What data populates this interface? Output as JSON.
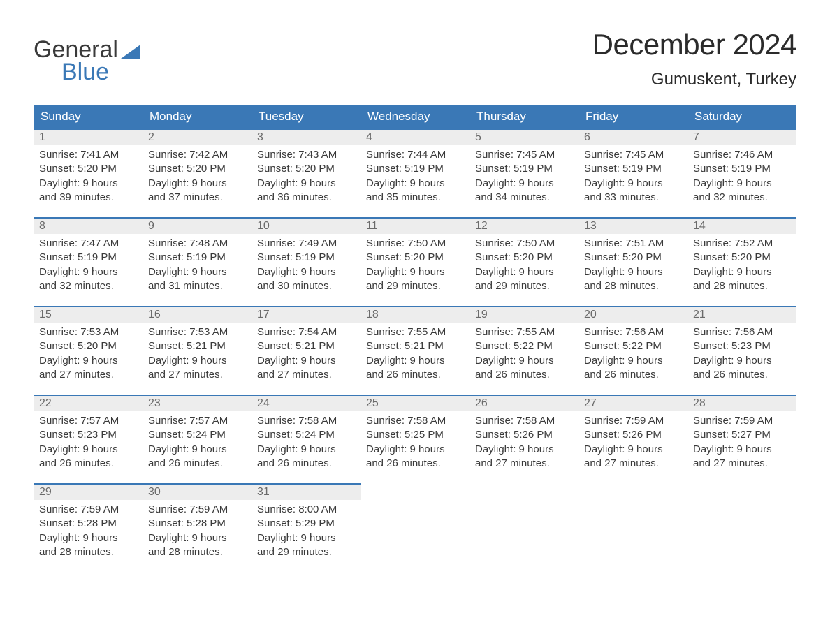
{
  "logo": {
    "line1": "General",
    "line2": "Blue"
  },
  "title": "December 2024",
  "location": "Gumuskent, Turkey",
  "colors": {
    "header_bg": "#3a78b6",
    "header_text": "#ffffff",
    "band_bg": "#ededed",
    "band_border": "#3a78b6",
    "body_text": "#3a3a3a",
    "day_num_text": "#6a6a6a",
    "page_bg": "#ffffff"
  },
  "typography": {
    "body_fontsize": 15,
    "header_fontsize": 17,
    "title_fontsize": 42,
    "location_fontsize": 24
  },
  "day_labels": [
    "Sunday",
    "Monday",
    "Tuesday",
    "Wednesday",
    "Thursday",
    "Friday",
    "Saturday"
  ],
  "field_labels": {
    "sunrise": "Sunrise:",
    "sunset": "Sunset:",
    "daylight": "Daylight:"
  },
  "weeks": [
    [
      {
        "n": "1",
        "sunrise": "7:41 AM",
        "sunset": "5:20 PM",
        "dl1": "9 hours",
        "dl2": "and 39 minutes."
      },
      {
        "n": "2",
        "sunrise": "7:42 AM",
        "sunset": "5:20 PM",
        "dl1": "9 hours",
        "dl2": "and 37 minutes."
      },
      {
        "n": "3",
        "sunrise": "7:43 AM",
        "sunset": "5:20 PM",
        "dl1": "9 hours",
        "dl2": "and 36 minutes."
      },
      {
        "n": "4",
        "sunrise": "7:44 AM",
        "sunset": "5:19 PM",
        "dl1": "9 hours",
        "dl2": "and 35 minutes."
      },
      {
        "n": "5",
        "sunrise": "7:45 AM",
        "sunset": "5:19 PM",
        "dl1": "9 hours",
        "dl2": "and 34 minutes."
      },
      {
        "n": "6",
        "sunrise": "7:45 AM",
        "sunset": "5:19 PM",
        "dl1": "9 hours",
        "dl2": "and 33 minutes."
      },
      {
        "n": "7",
        "sunrise": "7:46 AM",
        "sunset": "5:19 PM",
        "dl1": "9 hours",
        "dl2": "and 32 minutes."
      }
    ],
    [
      {
        "n": "8",
        "sunrise": "7:47 AM",
        "sunset": "5:19 PM",
        "dl1": "9 hours",
        "dl2": "and 32 minutes."
      },
      {
        "n": "9",
        "sunrise": "7:48 AM",
        "sunset": "5:19 PM",
        "dl1": "9 hours",
        "dl2": "and 31 minutes."
      },
      {
        "n": "10",
        "sunrise": "7:49 AM",
        "sunset": "5:19 PM",
        "dl1": "9 hours",
        "dl2": "and 30 minutes."
      },
      {
        "n": "11",
        "sunrise": "7:50 AM",
        "sunset": "5:20 PM",
        "dl1": "9 hours",
        "dl2": "and 29 minutes."
      },
      {
        "n": "12",
        "sunrise": "7:50 AM",
        "sunset": "5:20 PM",
        "dl1": "9 hours",
        "dl2": "and 29 minutes."
      },
      {
        "n": "13",
        "sunrise": "7:51 AM",
        "sunset": "5:20 PM",
        "dl1": "9 hours",
        "dl2": "and 28 minutes."
      },
      {
        "n": "14",
        "sunrise": "7:52 AM",
        "sunset": "5:20 PM",
        "dl1": "9 hours",
        "dl2": "and 28 minutes."
      }
    ],
    [
      {
        "n": "15",
        "sunrise": "7:53 AM",
        "sunset": "5:20 PM",
        "dl1": "9 hours",
        "dl2": "and 27 minutes."
      },
      {
        "n": "16",
        "sunrise": "7:53 AM",
        "sunset": "5:21 PM",
        "dl1": "9 hours",
        "dl2": "and 27 minutes."
      },
      {
        "n": "17",
        "sunrise": "7:54 AM",
        "sunset": "5:21 PM",
        "dl1": "9 hours",
        "dl2": "and 27 minutes."
      },
      {
        "n": "18",
        "sunrise": "7:55 AM",
        "sunset": "5:21 PM",
        "dl1": "9 hours",
        "dl2": "and 26 minutes."
      },
      {
        "n": "19",
        "sunrise": "7:55 AM",
        "sunset": "5:22 PM",
        "dl1": "9 hours",
        "dl2": "and 26 minutes."
      },
      {
        "n": "20",
        "sunrise": "7:56 AM",
        "sunset": "5:22 PM",
        "dl1": "9 hours",
        "dl2": "and 26 minutes."
      },
      {
        "n": "21",
        "sunrise": "7:56 AM",
        "sunset": "5:23 PM",
        "dl1": "9 hours",
        "dl2": "and 26 minutes."
      }
    ],
    [
      {
        "n": "22",
        "sunrise": "7:57 AM",
        "sunset": "5:23 PM",
        "dl1": "9 hours",
        "dl2": "and 26 minutes."
      },
      {
        "n": "23",
        "sunrise": "7:57 AM",
        "sunset": "5:24 PM",
        "dl1": "9 hours",
        "dl2": "and 26 minutes."
      },
      {
        "n": "24",
        "sunrise": "7:58 AM",
        "sunset": "5:24 PM",
        "dl1": "9 hours",
        "dl2": "and 26 minutes."
      },
      {
        "n": "25",
        "sunrise": "7:58 AM",
        "sunset": "5:25 PM",
        "dl1": "9 hours",
        "dl2": "and 26 minutes."
      },
      {
        "n": "26",
        "sunrise": "7:58 AM",
        "sunset": "5:26 PM",
        "dl1": "9 hours",
        "dl2": "and 27 minutes."
      },
      {
        "n": "27",
        "sunrise": "7:59 AM",
        "sunset": "5:26 PM",
        "dl1": "9 hours",
        "dl2": "and 27 minutes."
      },
      {
        "n": "28",
        "sunrise": "7:59 AM",
        "sunset": "5:27 PM",
        "dl1": "9 hours",
        "dl2": "and 27 minutes."
      }
    ],
    [
      {
        "n": "29",
        "sunrise": "7:59 AM",
        "sunset": "5:28 PM",
        "dl1": "9 hours",
        "dl2": "and 28 minutes."
      },
      {
        "n": "30",
        "sunrise": "7:59 AM",
        "sunset": "5:28 PM",
        "dl1": "9 hours",
        "dl2": "and 28 minutes."
      },
      {
        "n": "31",
        "sunrise": "8:00 AM",
        "sunset": "5:29 PM",
        "dl1": "9 hours",
        "dl2": "and 29 minutes."
      },
      null,
      null,
      null,
      null
    ]
  ]
}
